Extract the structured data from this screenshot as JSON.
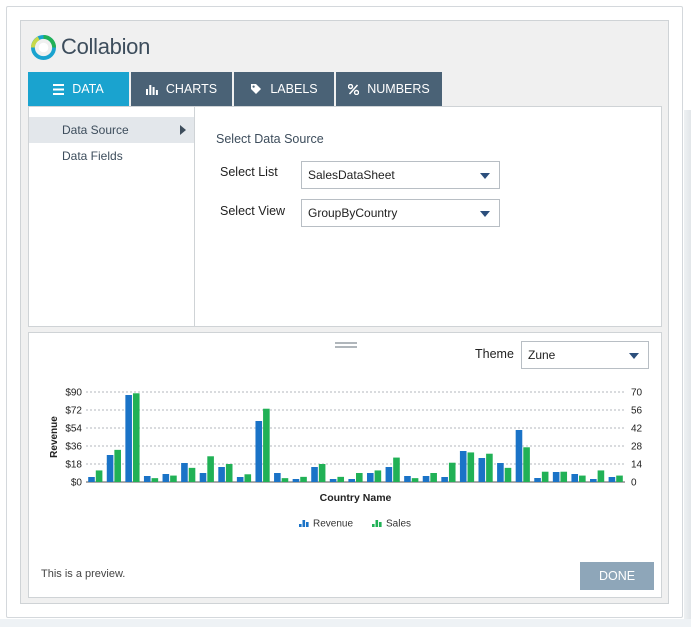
{
  "app": {
    "name": "Collabion"
  },
  "tabs": [
    {
      "label": "DATA",
      "icon": "list-icon",
      "active": true
    },
    {
      "label": "CHARTS",
      "icon": "bar-chart-icon",
      "active": false
    },
    {
      "label": "LABELS",
      "icon": "tag-icon",
      "active": false
    },
    {
      "label": "NUMBERS",
      "icon": "percent-icon",
      "active": false
    }
  ],
  "sidebar": {
    "items": [
      {
        "label": "Data Source",
        "selected": true
      },
      {
        "label": "Data Fields",
        "selected": false
      }
    ]
  },
  "data_source": {
    "title": "Select Data Source",
    "list_label": "Select List",
    "list_value": "SalesDataSheet",
    "view_label": "Select View",
    "view_value": "GroupByCountry"
  },
  "preview": {
    "theme_label": "Theme",
    "theme_value": "Zune",
    "note": "This is a preview.",
    "done_label": "DONE"
  },
  "colors": {
    "accent": "#1aa3cf",
    "tab": "#4a6276",
    "revenue": "#1a73c7",
    "sales": "#21b156",
    "done": "#8ea6b9"
  },
  "chart_data": {
    "type": "bar",
    "title": "",
    "xlabel": "Country Name",
    "ylabel": "Revenue",
    "y_axis": {
      "ticks": [
        "$0",
        "$18",
        "$36",
        "$54",
        "$72",
        "$90"
      ],
      "min": 0,
      "max": 90
    },
    "y2_axis": {
      "ticks": [
        "0",
        "14",
        "28",
        "42",
        "56",
        "70"
      ],
      "min": 0,
      "max": 70
    },
    "grid": true,
    "legend": "bottom-center",
    "series": [
      {
        "name": "Revenue",
        "axis": "primary",
        "values": [
          5,
          27,
          87,
          6,
          8,
          19,
          9,
          15,
          5,
          61,
          9,
          3,
          15,
          3,
          3,
          9,
          15,
          6,
          6,
          5,
          31,
          24,
          19,
          52,
          4,
          10,
          8,
          3,
          5
        ]
      },
      {
        "name": "Sales",
        "axis": "secondary",
        "values": [
          9,
          25,
          69,
          3,
          5,
          11,
          20,
          14,
          6,
          57,
          3,
          4,
          14,
          4,
          7,
          9,
          19,
          3,
          7,
          15,
          23,
          22,
          11,
          27,
          8,
          8,
          5,
          9,
          5
        ]
      }
    ]
  }
}
